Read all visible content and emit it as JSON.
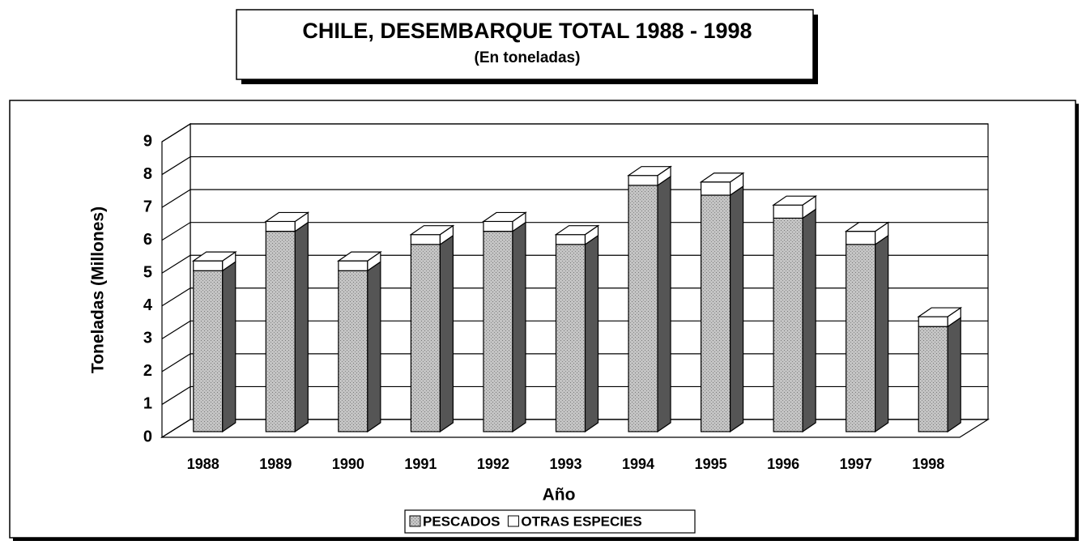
{
  "chart_data": {
    "type": "bar3d_stacked",
    "title": "CHILE, DESEMBARQUE TOTAL 1988 - 1998",
    "subtitle": "(En toneladas)",
    "x_label": "Año",
    "y_label": "Toneladas (Millones)",
    "categories": [
      "1988",
      "1989",
      "1990",
      "1991",
      "1992",
      "1993",
      "1994",
      "1995",
      "1996",
      "1997",
      "1998"
    ],
    "series": [
      {
        "name": "PESCADOS",
        "color": "#b4b4b4",
        "values": [
          4.9,
          6.1,
          4.9,
          5.7,
          6.1,
          5.7,
          7.5,
          7.2,
          6.5,
          5.7,
          3.2
        ]
      },
      {
        "name": "OTRAS ESPECIES",
        "color": "#ffffff",
        "values": [
          0.3,
          0.3,
          0.3,
          0.3,
          0.3,
          0.3,
          0.3,
          0.4,
          0.4,
          0.4,
          0.3
        ]
      }
    ],
    "ylim": [
      0,
      9
    ],
    "yticks": [
      0,
      1,
      2,
      3,
      4,
      5,
      6,
      7,
      8,
      9
    ],
    "grid": true,
    "legend": "bottom"
  }
}
